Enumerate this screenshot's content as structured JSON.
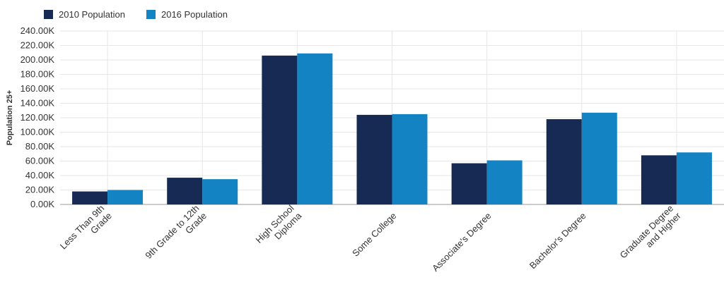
{
  "colors": {
    "series_2010": "#172a53",
    "series_2016": "#1383c4",
    "grid": "#e6e6e6",
    "axis": "#999999"
  },
  "chart_data": {
    "type": "bar",
    "ylabel": "Population 25+",
    "ylim": [
      0,
      240000
    ],
    "yticks": [
      0,
      20000,
      40000,
      60000,
      80000,
      100000,
      120000,
      140000,
      160000,
      180000,
      200000,
      220000,
      240000
    ],
    "ytick_labels": [
      "0.00K",
      "20.00K",
      "40.00K",
      "60.00K",
      "80.00K",
      "100.00K",
      "120.00K",
      "140.00K",
      "160.00K",
      "180.00K",
      "200.00K",
      "220.00K",
      "240.00K"
    ],
    "categories": [
      [
        "Less Than 9th",
        "Grade"
      ],
      [
        "9th Grade to 12th",
        "Grade"
      ],
      [
        "High School",
        "Diploma"
      ],
      [
        "Some College"
      ],
      [
        "Associate's Degree"
      ],
      [
        "Bachelor's Degree"
      ],
      [
        "Graduate Degree",
        "and Higher"
      ]
    ],
    "series": [
      {
        "name": "2010 Population",
        "values": [
          18000,
          37000,
          206000,
          124000,
          57000,
          118000,
          68000
        ]
      },
      {
        "name": "2016 Population",
        "values": [
          20000,
          35000,
          209000,
          125000,
          61000,
          127000,
          72000
        ]
      }
    ],
    "legend_position": "top-left",
    "grid": true
  }
}
